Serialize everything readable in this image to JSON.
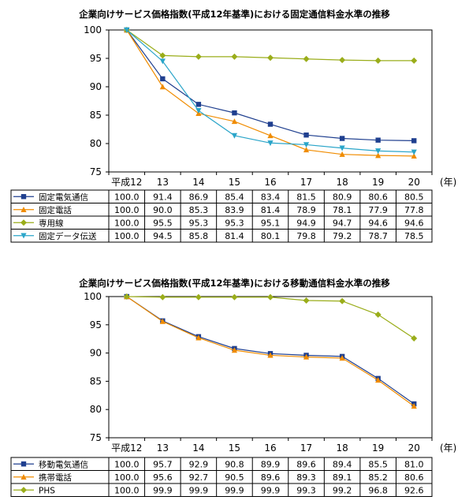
{
  "chart_data": [
    {
      "type": "line",
      "title": "企業向けサービス価格指数(平成12年基準)における固定通信料金水準の推移",
      "categories": [
        "平成12",
        "13",
        "14",
        "15",
        "16",
        "17",
        "18",
        "19",
        "20"
      ],
      "unit_label": "(年)",
      "ylim": [
        75,
        100
      ],
      "yticks": [
        75,
        80,
        85,
        90,
        95,
        100
      ],
      "grid": false,
      "legend": "table-below",
      "series": [
        {
          "name": "固定電気通信",
          "color": "#1f3f8f",
          "marker": "square",
          "values": [
            100.0,
            91.4,
            86.9,
            85.4,
            83.4,
            81.5,
            80.9,
            80.6,
            80.5
          ]
        },
        {
          "name": "固定電話",
          "color": "#f08c00",
          "marker": "triangle",
          "values": [
            100.0,
            90.0,
            85.3,
            83.9,
            81.4,
            78.9,
            78.1,
            77.9,
            77.8
          ]
        },
        {
          "name": "専用線",
          "color": "#9aad1a",
          "marker": "diamond",
          "values": [
            100.0,
            95.5,
            95.3,
            95.3,
            95.1,
            94.9,
            94.7,
            94.6,
            94.6
          ]
        },
        {
          "name": "固定データ伝送",
          "color": "#2aa5c9",
          "marker": "triangle-down",
          "values": [
            100.0,
            94.5,
            85.8,
            81.4,
            80.1,
            79.8,
            79.2,
            78.7,
            78.5
          ]
        }
      ],
      "table": [
        [
          "100.0",
          "91.4",
          "86.9",
          "85.4",
          "83.4",
          "81.5",
          "80.9",
          "80.6",
          "80.5"
        ],
        [
          "100.0",
          "90.0",
          "85.3",
          "83.9",
          "81.4",
          "78.9",
          "78.1",
          "77.9",
          "77.8"
        ],
        [
          "100.0",
          "95.5",
          "95.3",
          "95.3",
          "95.1",
          "94.9",
          "94.7",
          "94.6",
          "94.6"
        ],
        [
          "100.0",
          "94.5",
          "85.8",
          "81.4",
          "80.1",
          "79.8",
          "79.2",
          "78.7",
          "78.5"
        ]
      ]
    },
    {
      "type": "line",
      "title": "企業向けサービス価格指数(平成12年基準)における移動通信料金水準の推移",
      "categories": [
        "平成12",
        "13",
        "14",
        "15",
        "16",
        "17",
        "18",
        "19",
        "20"
      ],
      "unit_label": "(年)",
      "ylim": [
        75,
        100
      ],
      "yticks": [
        75,
        80,
        85,
        90,
        95,
        100
      ],
      "grid": false,
      "legend": "table-below",
      "series": [
        {
          "name": "移動電気通信",
          "color": "#1f3f8f",
          "marker": "square",
          "values": [
            100.0,
            95.7,
            92.9,
            90.8,
            89.9,
            89.6,
            89.4,
            85.5,
            81.0
          ]
        },
        {
          "name": "携帯電話",
          "color": "#f08c00",
          "marker": "triangle",
          "values": [
            100.0,
            95.6,
            92.7,
            90.5,
            89.6,
            89.3,
            89.1,
            85.2,
            80.6
          ]
        },
        {
          "name": "PHS",
          "color": "#9aad1a",
          "marker": "diamond",
          "values": [
            100.0,
            99.9,
            99.9,
            99.9,
            99.9,
            99.3,
            99.2,
            96.8,
            92.6
          ]
        }
      ],
      "table": [
        [
          "100.0",
          "95.7",
          "92.9",
          "90.8",
          "89.9",
          "89.6",
          "89.4",
          "85.5",
          "81.0"
        ],
        [
          "100.0",
          "95.6",
          "92.7",
          "90.5",
          "89.6",
          "89.3",
          "89.1",
          "85.2",
          "80.6"
        ],
        [
          "100.0",
          "99.9",
          "99.9",
          "99.9",
          "99.9",
          "99.3",
          "99.2",
          "96.8",
          "92.6"
        ]
      ]
    }
  ]
}
